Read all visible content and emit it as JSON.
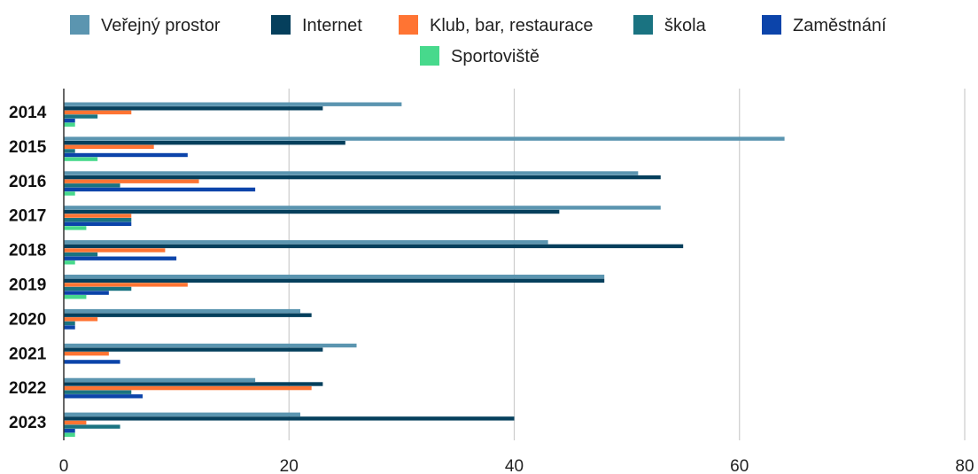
{
  "chart_data": {
    "type": "bar",
    "orientation": "horizontal",
    "categories": [
      "2014",
      "2015",
      "2016",
      "2017",
      "2018",
      "2019",
      "2020",
      "2021",
      "2022",
      "2023"
    ],
    "series": [
      {
        "name": "Veřejný prostor",
        "color": "#5b95b0",
        "values": [
          30,
          64,
          51,
          53,
          43,
          48,
          21,
          26,
          17,
          21
        ]
      },
      {
        "name": "Internet",
        "color": "#053f5c",
        "values": [
          23,
          25,
          53,
          44,
          55,
          48,
          22,
          23,
          23,
          40
        ]
      },
      {
        "name": "Klub, bar, restaurace",
        "color": "#ff7433",
        "values": [
          6,
          8,
          12,
          6,
          9,
          11,
          3,
          4,
          22,
          2
        ]
      },
      {
        "name": "škola",
        "color": "#1a7381",
        "values": [
          3,
          1,
          5,
          6,
          3,
          6,
          1,
          0,
          6,
          5
        ]
      },
      {
        "name": "Zaměstnání",
        "color": "#0c44aa",
        "values": [
          1,
          11,
          17,
          6,
          10,
          4,
          1,
          5,
          7,
          1
        ]
      },
      {
        "name": "Sportoviště",
        "color": "#47d98c",
        "values": [
          1,
          3,
          1,
          2,
          1,
          2,
          0,
          0,
          0,
          1
        ]
      }
    ],
    "xlim": [
      0,
      80
    ],
    "x_ticks": [
      0,
      20,
      40,
      60,
      80
    ],
    "grid": true,
    "legend_position": "top-center",
    "title": "",
    "xlabel": "",
    "ylabel": ""
  }
}
